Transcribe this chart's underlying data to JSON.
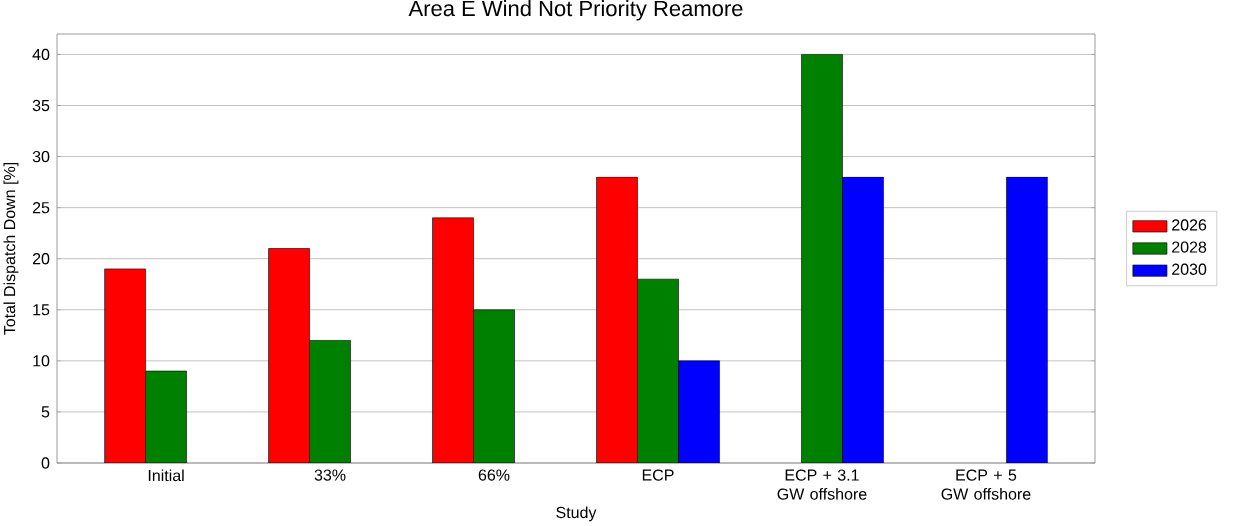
{
  "chart_data": {
    "type": "bar",
    "title": "Area E Wind Not Priority Reamore",
    "xlabel": "Study",
    "ylabel": "Total Dispatch Down [%]",
    "categories": [
      "Initial",
      "33%",
      "66%",
      "ECP",
      "ECP + 3.1 GW offshore",
      "ECP + 5 GW offshore"
    ],
    "series": [
      {
        "name": "2026",
        "color": "#ff0000",
        "values": [
          19,
          21,
          24,
          28,
          null,
          null
        ]
      },
      {
        "name": "2028",
        "color": "#008000",
        "values": [
          9,
          12,
          15,
          18,
          40,
          null
        ]
      },
      {
        "name": "2030",
        "color": "#0000ff",
        "values": [
          null,
          null,
          null,
          10,
          28,
          28
        ]
      }
    ],
    "ylim": [
      0,
      42
    ],
    "yticks": [
      0,
      5,
      10,
      15,
      20,
      25,
      30,
      35,
      40
    ],
    "grid": "y",
    "legend": "right"
  }
}
